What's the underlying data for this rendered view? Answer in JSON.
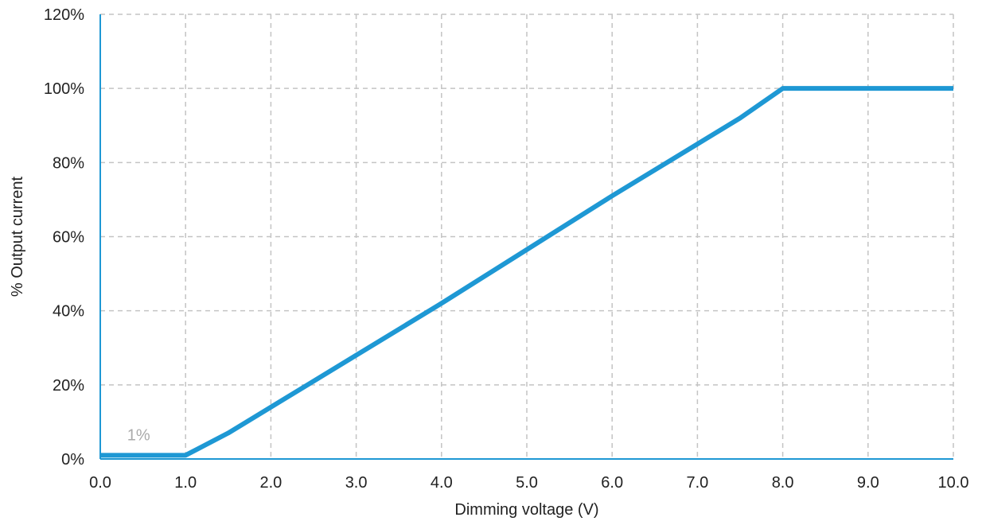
{
  "chart_data": {
    "type": "line",
    "title": "",
    "xlabel": "Dimming voltage (V)",
    "ylabel": "% Output current",
    "xlim": [
      0,
      10
    ],
    "ylim": [
      0,
      120
    ],
    "x_ticks": [
      "0.0",
      "1.0",
      "2.0",
      "3.0",
      "4.0",
      "5.0",
      "6.0",
      "7.0",
      "8.0",
      "9.0",
      "10.0"
    ],
    "y_ticks": [
      "0%",
      "20%",
      "40%",
      "60%",
      "80%",
      "100%",
      "120%"
    ],
    "grid": true,
    "legend": "none",
    "series": [
      {
        "color": "#1e98d4",
        "points": [
          {
            "x": 0.0,
            "y": 1
          },
          {
            "x": 1.0,
            "y": 1
          },
          {
            "x": 1.5,
            "y": 7
          },
          {
            "x": 2.0,
            "y": 14
          },
          {
            "x": 3.0,
            "y": 28
          },
          {
            "x": 4.0,
            "y": 42
          },
          {
            "x": 5.0,
            "y": 56.5
          },
          {
            "x": 6.0,
            "y": 71
          },
          {
            "x": 7.0,
            "y": 85
          },
          {
            "x": 7.5,
            "y": 92
          },
          {
            "x": 8.0,
            "y": 100
          },
          {
            "x": 9.0,
            "y": 100
          },
          {
            "x": 10.0,
            "y": 100
          }
        ]
      }
    ],
    "annotations": [
      {
        "text": "1%",
        "x": 0.45,
        "y": 6.5,
        "color": "#aaaaaa"
      }
    ],
    "colors": {
      "grid": "#c4c4c4",
      "axis": "#1e98d4",
      "text": "#222222"
    }
  }
}
